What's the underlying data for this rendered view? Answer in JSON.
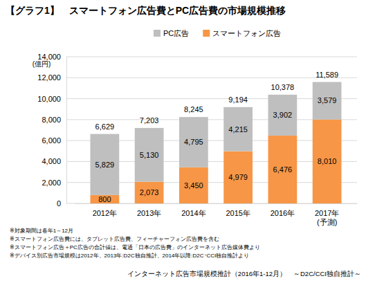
{
  "chart_data": {
    "type": "bar",
    "stacked": true,
    "data_labels": true,
    "grid": true,
    "legend": "top",
    "title": "【グラフ1】　スマートフォン広告費とPC広告費の市場規模推移",
    "y_label": "(億円)",
    "categories": [
      "2012年",
      "2013年",
      "2014年",
      "2015年",
      "2016年",
      "2017年\n(予測)"
    ],
    "series": [
      {
        "name": "スマートフォン広告",
        "color": "#f79646",
        "values": [
          800,
          2073,
          3450,
          4979,
          6476,
          8010
        ],
        "value_labels": [
          "800",
          "2,073",
          "3,450",
          "4,979",
          "6,476",
          "8,010"
        ]
      },
      {
        "name": "PC広告",
        "color": "#bfbfbf",
        "values": [
          5829,
          5130,
          4795,
          4215,
          3902,
          3579
        ],
        "value_labels": [
          "5,829",
          "5,130",
          "4,795",
          "4,215",
          "3,902",
          "3,579"
        ]
      }
    ],
    "totals": [
      6629,
      7203,
      8245,
      9194,
      10378,
      11589
    ],
    "total_labels": [
      "6,629",
      "7,203",
      "8,245",
      "9,194",
      "10,378",
      "11,589"
    ],
    "ylim": [
      0,
      14000
    ],
    "yticks": [
      0,
      {
        "value": 2000,
        "label": "2,000"
      },
      {
        "value": 4000,
        "label": "4,000"
      },
      {
        "value": 6000,
        "label": "6,000"
      },
      {
        "value": 8000,
        "label": "8,000"
      },
      {
        "value": 10000,
        "label": "10,000"
      },
      {
        "value": 12000,
        "label": "12,000"
      },
      {
        "value": 14000,
        "label": "14,000"
      }
    ],
    "notes": [
      "※対象期間は各年1～12月",
      "※スマートフォン広告費には、タブレット広告費、フィーチャーフォン広告費を含む",
      "※スマートフォン広告＋PC広告の合計値は、電通「日本の広告費」のインターネット広告媒体費より",
      "※デバイス別広告市場規模は2012年、2013年:D2C独自推計、2014年以降:D2C･CCI独自推計より"
    ],
    "source": "インターネット広告市場規模推計（2016年1-12月）　～D2C/CCI独自推計～"
  }
}
